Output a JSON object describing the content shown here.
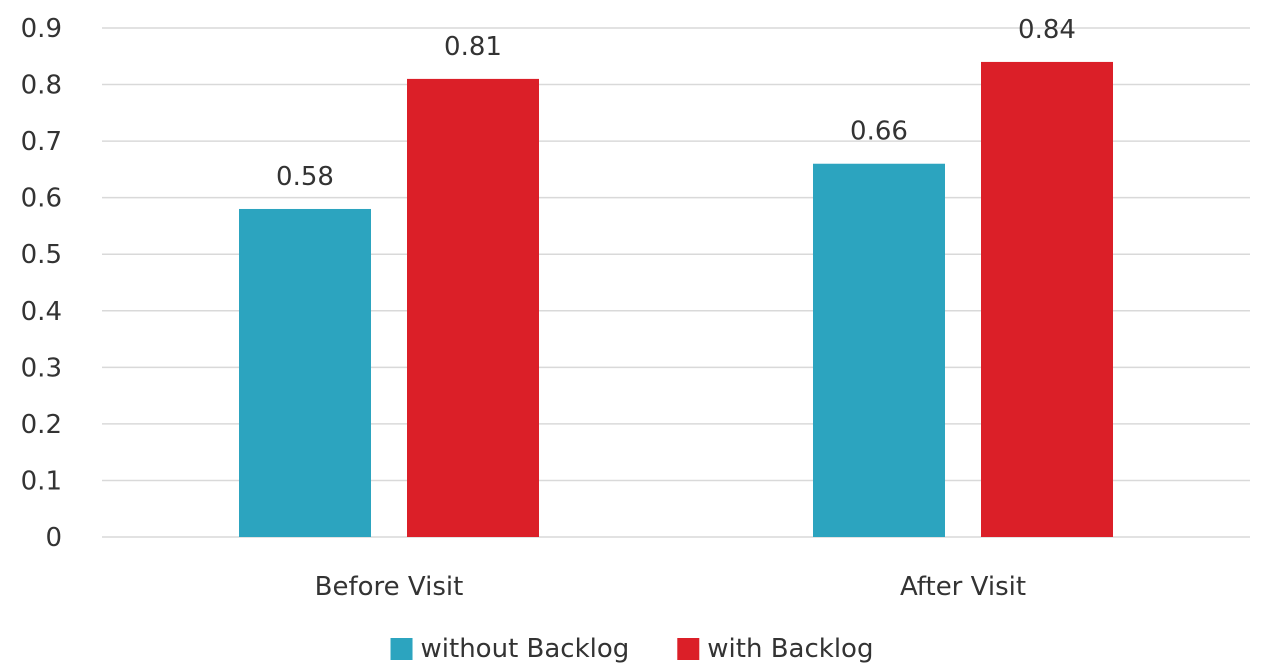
{
  "chart_data": {
    "type": "bar",
    "title": "",
    "xlabel": "",
    "ylabel": "",
    "categories": [
      "Before Visit",
      "After Visit"
    ],
    "series": [
      {
        "name": "without Backlog",
        "values": [
          0.58,
          0.66
        ],
        "color": "#2ca4bf"
      },
      {
        "name": "with Backlog",
        "values": [
          0.81,
          0.84
        ],
        "color": "#db1f28"
      }
    ],
    "ylim": [
      0,
      0.9
    ],
    "yticks": [
      "0",
      "0.1",
      "0.2",
      "0.3",
      "0.4",
      "0.5",
      "0.6",
      "0.7",
      "0.8",
      "0.9"
    ],
    "data_labels": true,
    "grid": "horizontal",
    "legend": "bottom-center"
  }
}
